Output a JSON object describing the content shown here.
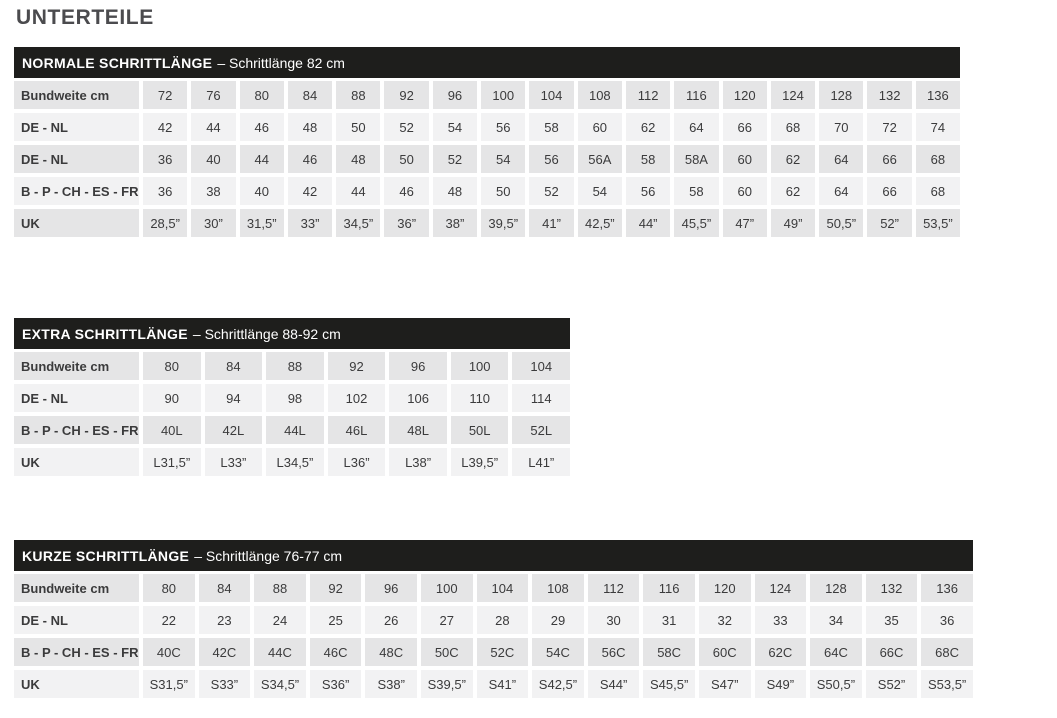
{
  "page": {
    "title": "UNTERTEILE"
  },
  "colors": {
    "header_bg": "#1e1e1c",
    "header_text": "#ffffff",
    "row_dark": "#e5e5e6",
    "row_light": "#f2f2f3",
    "text": "#3b3b3c",
    "title_text": "#4b4b4e"
  },
  "tables": [
    {
      "title": "NORMALE SCHRITTLÄNGE",
      "subtitle": "– Schrittlänge 82 cm",
      "rows": [
        {
          "label": "Bundweite cm",
          "values": [
            "72",
            "76",
            "80",
            "84",
            "88",
            "92",
            "96",
            "100",
            "104",
            "108",
            "112",
            "116",
            "120",
            "124",
            "128",
            "132",
            "136"
          ]
        },
        {
          "label": "DE - NL",
          "values": [
            "42",
            "44",
            "46",
            "48",
            "50",
            "52",
            "54",
            "56",
            "58",
            "60",
            "62",
            "64",
            "66",
            "68",
            "70",
            "72",
            "74"
          ]
        },
        {
          "label": "DE - NL",
          "values": [
            "36",
            "40",
            "44",
            "46",
            "48",
            "50",
            "52",
            "54",
            "56",
            "56A",
            "58",
            "58A",
            "60",
            "62",
            "64",
            "66",
            "68"
          ]
        },
        {
          "label": "B - P - CH - ES - FR",
          "values": [
            "36",
            "38",
            "40",
            "42",
            "44",
            "46",
            "48",
            "50",
            "52",
            "54",
            "56",
            "58",
            "60",
            "62",
            "64",
            "66",
            "68"
          ]
        },
        {
          "label": "UK",
          "values": [
            "28,5”",
            "30”",
            "31,5”",
            "33”",
            "34,5”",
            "36”",
            "38”",
            "39,5”",
            "41”",
            "42,5”",
            "44”",
            "45,5”",
            "47”",
            "49”",
            "50,5”",
            "52”",
            "53,5”"
          ]
        }
      ]
    },
    {
      "title": "EXTRA SCHRITTLÄNGE",
      "subtitle": "– Schrittlänge 88-92 cm",
      "rows": [
        {
          "label": "Bundweite cm",
          "values": [
            "80",
            "84",
            "88",
            "92",
            "96",
            "100",
            "104"
          ]
        },
        {
          "label": "DE - NL",
          "values": [
            "90",
            "94",
            "98",
            "102",
            "106",
            "110",
            "114"
          ]
        },
        {
          "label": "B - P - CH - ES - FR",
          "values": [
            "40L",
            "42L",
            "44L",
            "46L",
            "48L",
            "50L",
            "52L"
          ]
        },
        {
          "label": "UK",
          "values": [
            "L31,5”",
            "L33”",
            "L34,5”",
            "L36”",
            "L38”",
            "L39,5”",
            "L41”"
          ]
        }
      ]
    },
    {
      "title": "KURZE SCHRITTLÄNGE",
      "subtitle": "– Schrittlänge 76-77 cm",
      "rows": [
        {
          "label": "Bundweite cm",
          "values": [
            "80",
            "84",
            "88",
            "92",
            "96",
            "100",
            "104",
            "108",
            "112",
            "116",
            "120",
            "124",
            "128",
            "132",
            "136"
          ]
        },
        {
          "label": "DE - NL",
          "values": [
            "22",
            "23",
            "24",
            "25",
            "26",
            "27",
            "28",
            "29",
            "30",
            "31",
            "32",
            "33",
            "34",
            "35",
            "36"
          ]
        },
        {
          "label": "B - P - CH - ES - FR",
          "values": [
            "40C",
            "42C",
            "44C",
            "46C",
            "48C",
            "50C",
            "52C",
            "54C",
            "56C",
            "58C",
            "60C",
            "62C",
            "64C",
            "66C",
            "68C"
          ]
        },
        {
          "label": "UK",
          "values": [
            "S31,5”",
            "S33”",
            "S34,5”",
            "S36”",
            "S38”",
            "S39,5”",
            "S41”",
            "S42,5”",
            "S44”",
            "S45,5”",
            "S47”",
            "S49”",
            "S50,5”",
            "S52”",
            "S53,5”"
          ]
        }
      ]
    }
  ]
}
